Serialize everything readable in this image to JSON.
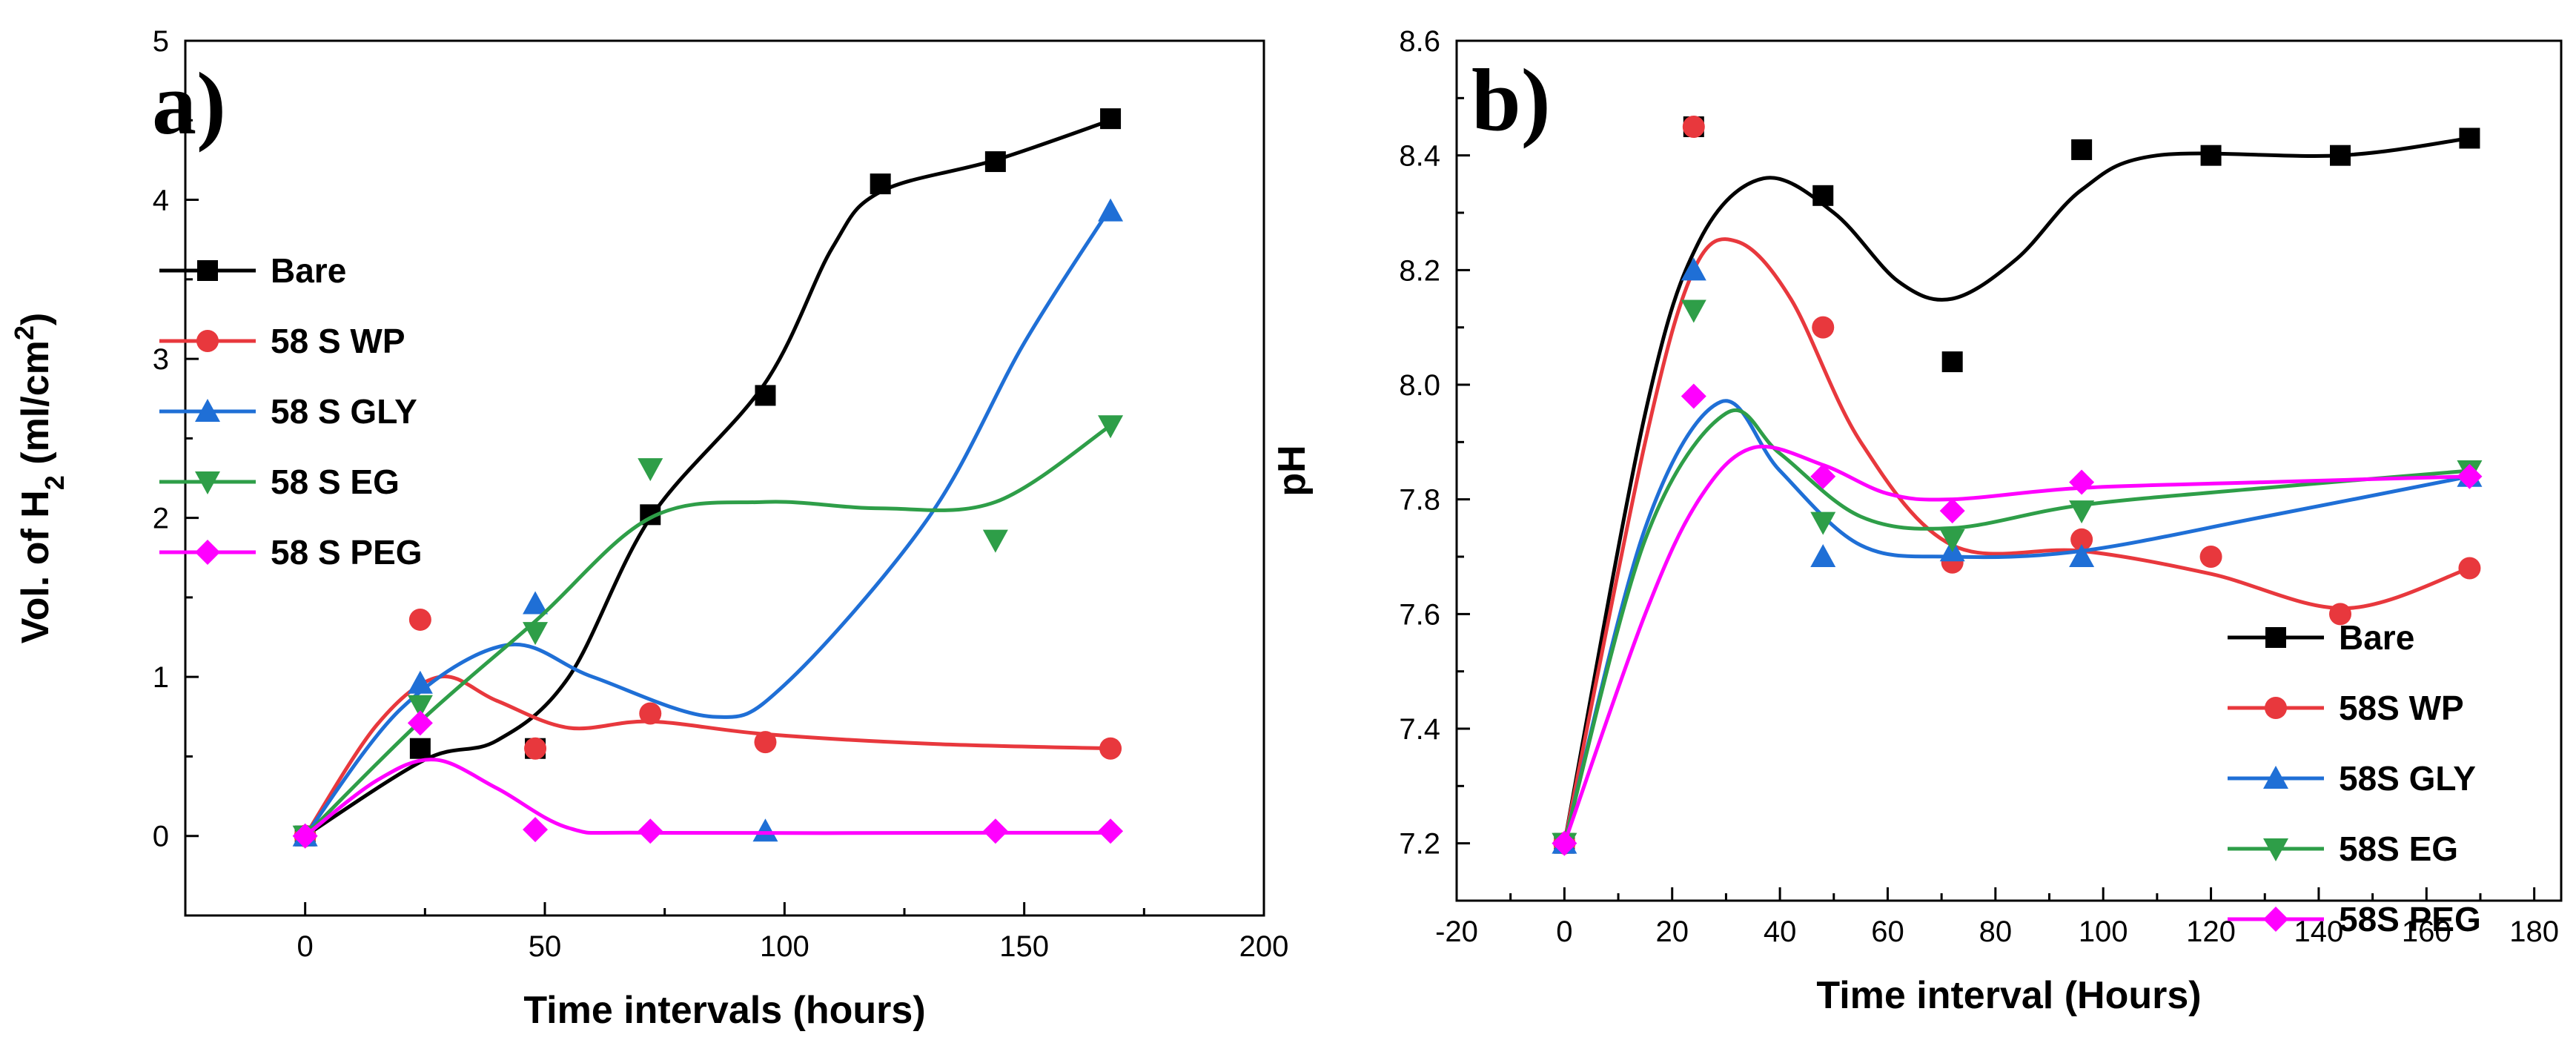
{
  "chart_data": [
    {
      "type": "scatter",
      "panel_label": "a)",
      "xlabel": "Time intervals (hours)",
      "ylabel": "Vol. of H",
      "ylabel_sub": "2",
      "ylabel_unit_pre": " (ml/cm",
      "ylabel_unit_sup": "2",
      "ylabel_unit_post": ")",
      "xlim": [
        -25,
        200
      ],
      "ylim": [
        -0.5,
        5
      ],
      "xticks": [
        0,
        50,
        100,
        150,
        200
      ],
      "xtick_labels": [
        "0",
        "50",
        "100",
        "150",
        "200"
      ],
      "yticks": [
        0,
        1,
        2,
        3,
        4,
        5
      ],
      "ytick_labels": [
        "0",
        "1",
        "2",
        "3",
        "4",
        "5"
      ],
      "legend_position": "left",
      "series": [
        {
          "name": "Bare",
          "color": "#000000",
          "marker": "square",
          "x": [
            0,
            24,
            48,
            72,
            96,
            120,
            144,
            168
          ],
          "y": [
            0,
            0.55,
            0.55,
            2.02,
            2.77,
            4.1,
            4.24,
            4.51
          ],
          "fit": [
            [
              0,
              0
            ],
            [
              25,
              0.48
            ],
            [
              40,
              0.6
            ],
            [
              55,
              1.0
            ],
            [
              72,
              2.0
            ],
            [
              96,
              2.85
            ],
            [
              110,
              3.7
            ],
            [
              120,
              4.05
            ],
            [
              144,
              4.25
            ],
            [
              168,
              4.5
            ]
          ]
        },
        {
          "name": "58 S WP",
          "color": "#e8383d",
          "marker": "circle",
          "x": [
            0,
            24,
            48,
            72,
            96,
            168
          ],
          "y": [
            0,
            1.36,
            0.55,
            0.77,
            0.59,
            0.55
          ],
          "fit": [
            [
              0,
              0
            ],
            [
              15,
              0.7
            ],
            [
              28,
              1.0
            ],
            [
              40,
              0.85
            ],
            [
              55,
              0.68
            ],
            [
              72,
              0.72
            ],
            [
              96,
              0.64
            ],
            [
              130,
              0.58
            ],
            [
              168,
              0.55
            ]
          ]
        },
        {
          "name": "58 S GLY",
          "color": "#1f6fd6",
          "marker": "triangle-up",
          "x": [
            0,
            24,
            48,
            96,
            168
          ],
          "y": [
            0,
            0.96,
            1.46,
            0.03,
            3.93
          ],
          "fit": [
            [
              0,
              0
            ],
            [
              20,
              0.8
            ],
            [
              42,
              1.2
            ],
            [
              60,
              1.0
            ],
            [
              85,
              0.75
            ],
            [
              100,
              0.95
            ],
            [
              130,
              2.0
            ],
            [
              150,
              3.1
            ],
            [
              168,
              3.95
            ]
          ]
        },
        {
          "name": "58 S EG",
          "color": "#2e9e48",
          "marker": "triangle-down",
          "x": [
            0,
            24,
            48,
            72,
            144,
            168
          ],
          "y": [
            0,
            0.82,
            1.28,
            2.31,
            1.86,
            2.58
          ],
          "fit": [
            [
              0,
              0
            ],
            [
              24,
              0.72
            ],
            [
              48,
              1.35
            ],
            [
              72,
              2.0
            ],
            [
              96,
              2.1
            ],
            [
              120,
              2.06
            ],
            [
              144,
              2.1
            ],
            [
              168,
              2.58
            ]
          ]
        },
        {
          "name": "58 S PEG",
          "color": "#ff00ff",
          "marker": "diamond",
          "x": [
            0,
            24,
            48,
            72,
            144,
            168
          ],
          "y": [
            0,
            0.71,
            0.04,
            0.03,
            0.03,
            0.03
          ],
          "fit": [
            [
              0,
              0
            ],
            [
              15,
              0.35
            ],
            [
              27,
              0.48
            ],
            [
              40,
              0.3
            ],
            [
              55,
              0.05
            ],
            [
              72,
              0.02
            ],
            [
              144,
              0.02
            ],
            [
              168,
              0.02
            ]
          ]
        }
      ]
    },
    {
      "type": "scatter",
      "panel_label": "b)",
      "xlabel": "Time interval (Hours)",
      "ylabel": "pH",
      "xlim": [
        -20,
        185
      ],
      "ylim": [
        7.1,
        8.6
      ],
      "xticks": [
        -20,
        0,
        20,
        40,
        60,
        80,
        100,
        120,
        140,
        160,
        180
      ],
      "xtick_labels": [
        "-20",
        "0",
        "20",
        "40",
        "60",
        "80",
        "100",
        "120",
        "140",
        "160",
        "180"
      ],
      "yticks": [
        7.2,
        7.4,
        7.6,
        7.8,
        8.0,
        8.2,
        8.4,
        8.6
      ],
      "ytick_labels": [
        "7.2",
        "7.4",
        "7.6",
        "7.8",
        "8.0",
        "8.2",
        "8.4",
        "8.6"
      ],
      "legend_position": "bottom-right",
      "series": [
        {
          "name": "Bare",
          "color": "#000000",
          "marker": "square",
          "x": [
            0,
            24,
            48,
            72,
            96,
            120,
            144,
            168
          ],
          "y": [
            7.2,
            8.45,
            8.33,
            8.04,
            8.41,
            8.4,
            8.4,
            8.43
          ],
          "fit": [
            [
              0,
              7.2
            ],
            [
              15,
              7.95
            ],
            [
              25,
              8.25
            ],
            [
              37,
              8.36
            ],
            [
              50,
              8.3
            ],
            [
              62,
              8.18
            ],
            [
              72,
              8.15
            ],
            [
              84,
              8.22
            ],
            [
              96,
              8.34
            ],
            [
              110,
              8.4
            ],
            [
              144,
              8.4
            ],
            [
              168,
              8.43
            ]
          ]
        },
        {
          "name": "58S WP",
          "color": "#e8383d",
          "marker": "circle",
          "x": [
            0,
            24,
            48,
            72,
            96,
            120,
            144,
            168
          ],
          "y": [
            7.2,
            8.45,
            8.1,
            7.69,
            7.73,
            7.7,
            7.6,
            7.68
          ],
          "fit": [
            [
              0,
              7.2
            ],
            [
              15,
              7.9
            ],
            [
              24,
              8.2
            ],
            [
              32,
              8.25
            ],
            [
              42,
              8.15
            ],
            [
              55,
              7.9
            ],
            [
              72,
              7.72
            ],
            [
              96,
              7.71
            ],
            [
              120,
              7.67
            ],
            [
              145,
              7.61
            ],
            [
              168,
              7.68
            ]
          ]
        },
        {
          "name": "58S GLY",
          "color": "#1f6fd6",
          "marker": "triangle-up",
          "x": [
            0,
            24,
            48,
            72,
            96,
            168
          ],
          "y": [
            7.2,
            8.2,
            7.7,
            7.71,
            7.7,
            7.84
          ],
          "fit": [
            [
              0,
              7.2
            ],
            [
              15,
              7.75
            ],
            [
              29,
              7.97
            ],
            [
              40,
              7.85
            ],
            [
              55,
              7.72
            ],
            [
              72,
              7.7
            ],
            [
              96,
              7.71
            ],
            [
              130,
              7.77
            ],
            [
              168,
              7.84
            ]
          ]
        },
        {
          "name": "58S EG",
          "color": "#2e9e48",
          "marker": "triangle-down",
          "x": [
            0,
            24,
            48,
            72,
            96,
            168
          ],
          "y": [
            7.2,
            8.13,
            7.76,
            7.73,
            7.78,
            7.85
          ],
          "fit": [
            [
              0,
              7.2
            ],
            [
              15,
              7.73
            ],
            [
              30,
              7.95
            ],
            [
              40,
              7.88
            ],
            [
              55,
              7.77
            ],
            [
              72,
              7.75
            ],
            [
              96,
              7.79
            ],
            [
              130,
              7.82
            ],
            [
              168,
              7.85
            ]
          ]
        },
        {
          "name": "58S PEG",
          "color": "#ff00ff",
          "marker": "diamond",
          "x": [
            0,
            24,
            48,
            72,
            96,
            168
          ],
          "y": [
            7.2,
            7.98,
            7.84,
            7.78,
            7.83,
            7.84
          ],
          "fit": [
            [
              0,
              7.2
            ],
            [
              15,
              7.6
            ],
            [
              25,
              7.8
            ],
            [
              35,
              7.89
            ],
            [
              48,
              7.86
            ],
            [
              60,
              7.81
            ],
            [
              72,
              7.8
            ],
            [
              96,
              7.82
            ],
            [
              130,
              7.83
            ],
            [
              168,
              7.84
            ]
          ]
        }
      ]
    }
  ]
}
